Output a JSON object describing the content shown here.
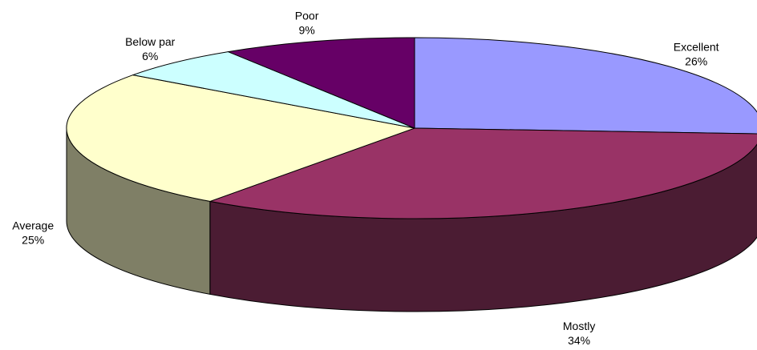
{
  "chart_data": {
    "type": "pie",
    "style": "3d",
    "title": "",
    "slices": [
      {
        "name": "Excellent",
        "value": 26,
        "label": "26%",
        "top_color": "#9999ff",
        "side_color": "#7777cc"
      },
      {
        "name": "Mostly",
        "value": 34,
        "label": "34%",
        "top_color": "#993366",
        "side_color": "#4b1c33"
      },
      {
        "name": "Average",
        "value": 25,
        "label": "25%",
        "top_color": "#ffffcc",
        "side_color": "#7f7f66"
      },
      {
        "name": "Below par",
        "value": 6,
        "label": "6%",
        "top_color": "#ccffff",
        "side_color": "#669999"
      },
      {
        "name": "Poor",
        "value": 9,
        "label": "9%",
        "top_color": "#660066",
        "side_color": "#330033"
      }
    ]
  }
}
